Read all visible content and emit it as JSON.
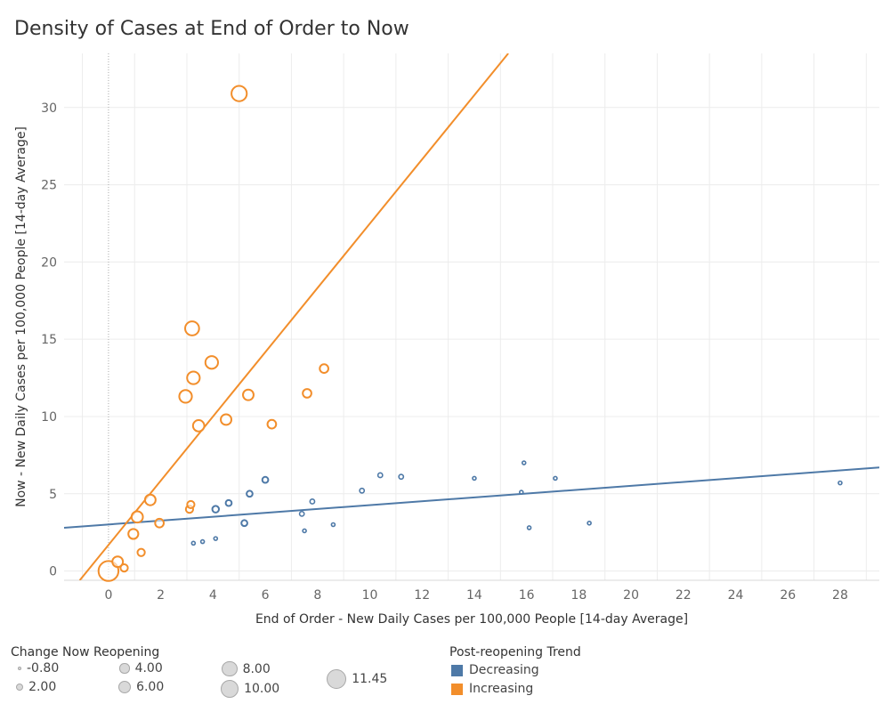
{
  "chart_data": {
    "type": "scatter",
    "title": "Density of Cases at End of Order to Now",
    "xlabel": "End of Order - New Daily Cases per 100,000 People [14-day Average]",
    "ylabel": "Now - New Daily Cases per 100,000 People [14-day Average]",
    "xlim": [
      -1.7,
      29.5
    ],
    "ylim": [
      -0.6,
      33.5
    ],
    "xticks": [
      0,
      2,
      4,
      6,
      8,
      10,
      12,
      14,
      16,
      18,
      20,
      22,
      24,
      26,
      28
    ],
    "yticks": [
      0,
      5,
      10,
      15,
      20,
      25,
      30
    ],
    "grid": true,
    "size_legend": {
      "title": "Change Now Reopening",
      "items": [
        {
          "label": "-0.80",
          "value": -0.8
        },
        {
          "label": "2.00",
          "value": 2.0
        },
        {
          "label": "4.00",
          "value": 4.0
        },
        {
          "label": "6.00",
          "value": 6.0
        },
        {
          "label": "8.00",
          "value": 8.0
        },
        {
          "label": "10.00",
          "value": 10.0
        },
        {
          "label": "11.45",
          "value": 11.45
        }
      ]
    },
    "color_legend": {
      "title": "Post-reopening Trend",
      "items": [
        {
          "label": "Decreasing",
          "color": "#4e79a7"
        },
        {
          "label": "Increasing",
          "color": "#f28e2b"
        }
      ]
    },
    "series": [
      {
        "name": "Decreasing",
        "color": "#4e79a7",
        "points": [
          {
            "x": 3.25,
            "y": 1.8,
            "size": -0.8
          },
          {
            "x": 3.6,
            "y": 1.9,
            "size": -0.8
          },
          {
            "x": 4.1,
            "y": 2.1,
            "size": -0.8
          },
          {
            "x": 4.1,
            "y": 4.0,
            "size": 1.5
          },
          {
            "x": 4.6,
            "y": 4.4,
            "size": 1.0
          },
          {
            "x": 5.2,
            "y": 3.1,
            "size": 1.0
          },
          {
            "x": 5.4,
            "y": 5.0,
            "size": 1.0
          },
          {
            "x": 6.0,
            "y": 5.9,
            "size": 1.0
          },
          {
            "x": 7.4,
            "y": 3.7,
            "size": 0.0
          },
          {
            "x": 7.5,
            "y": 2.6,
            "size": -0.8
          },
          {
            "x": 7.8,
            "y": 4.5,
            "size": 0.0
          },
          {
            "x": 8.6,
            "y": 3.0,
            "size": -0.8
          },
          {
            "x": 9.7,
            "y": 5.2,
            "size": 0.0
          },
          {
            "x": 10.4,
            "y": 6.2,
            "size": 0.0
          },
          {
            "x": 11.2,
            "y": 6.1,
            "size": 0.0
          },
          {
            "x": 14.0,
            "y": 6.0,
            "size": -0.8
          },
          {
            "x": 15.8,
            "y": 5.1,
            "size": -0.8
          },
          {
            "x": 15.9,
            "y": 7.0,
            "size": -0.8
          },
          {
            "x": 16.1,
            "y": 2.8,
            "size": -0.8
          },
          {
            "x": 17.1,
            "y": 6.0,
            "size": -0.8
          },
          {
            "x": 18.4,
            "y": 3.1,
            "size": -0.8
          },
          {
            "x": 28.0,
            "y": 5.7,
            "size": -0.8
          }
        ],
        "trend": {
          "x": [
            -1.7,
            29.5
          ],
          "y": [
            2.8,
            6.7
          ]
        }
      },
      {
        "name": "Increasing",
        "color": "#f28e2b",
        "points": [
          {
            "x": 0.0,
            "y": 0.0,
            "size": 11.45
          },
          {
            "x": 0.35,
            "y": 0.6,
            "size": 4.5
          },
          {
            "x": 0.6,
            "y": 0.2,
            "size": 2.0
          },
          {
            "x": 0.95,
            "y": 2.4,
            "size": 4.0
          },
          {
            "x": 1.1,
            "y": 3.5,
            "size": 5.0
          },
          {
            "x": 1.25,
            "y": 1.2,
            "size": 2.0
          },
          {
            "x": 1.6,
            "y": 4.6,
            "size": 4.5
          },
          {
            "x": 1.95,
            "y": 3.1,
            "size": 3.0
          },
          {
            "x": 2.95,
            "y": 11.3,
            "size": 6.0
          },
          {
            "x": 3.1,
            "y": 4.0,
            "size": 2.0
          },
          {
            "x": 3.15,
            "y": 4.3,
            "size": 2.0
          },
          {
            "x": 3.2,
            "y": 15.7,
            "size": 7.0
          },
          {
            "x": 3.25,
            "y": 12.5,
            "size": 6.0
          },
          {
            "x": 3.45,
            "y": 9.4,
            "size": 5.0
          },
          {
            "x": 3.95,
            "y": 13.5,
            "size": 6.0
          },
          {
            "x": 4.5,
            "y": 9.8,
            "size": 4.5
          },
          {
            "x": 5.0,
            "y": 30.9,
            "size": 8.0
          },
          {
            "x": 5.35,
            "y": 11.4,
            "size": 4.5
          },
          {
            "x": 6.25,
            "y": 9.5,
            "size": 3.0
          },
          {
            "x": 7.6,
            "y": 11.5,
            "size": 3.0
          },
          {
            "x": 8.25,
            "y": 13.1,
            "size": 3.0
          }
        ],
        "trend": {
          "x": [
            -1.1,
            15.3
          ],
          "y": [
            -0.6,
            33.5
          ]
        }
      }
    ]
  }
}
